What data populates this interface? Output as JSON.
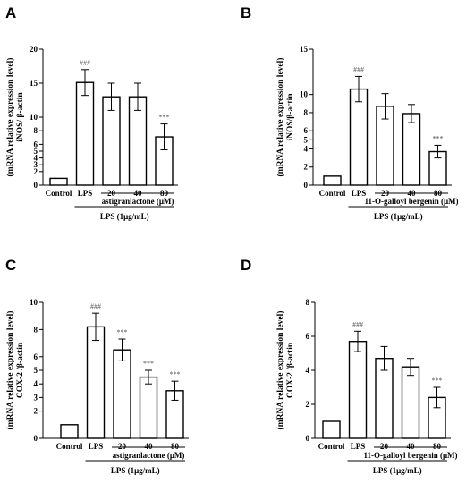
{
  "chart_data": [
    {
      "type": "bar",
      "panel": "A",
      "ylabel": "iNOS/ β-actin",
      "ylabel2": "(mRNA relative expression level)",
      "ylim": [
        0,
        20
      ],
      "y_ticks": [
        0,
        2,
        3,
        4,
        5,
        6,
        8,
        10,
        15,
        20
      ],
      "y_tick_labels": [
        "0",
        "2",
        "3",
        "4",
        "5",
        "6",
        "8",
        "10",
        "15",
        "20"
      ],
      "categories": [
        "Control",
        "LPS",
        "20",
        "40",
        "80"
      ],
      "values": [
        1.0,
        15.1,
        13.0,
        13.0,
        7.1
      ],
      "errors": [
        0,
        1.9,
        2.0,
        2.0,
        1.9
      ],
      "significance": [
        "",
        "###",
        "",
        "",
        "***"
      ],
      "treatment_label": "astigranlactone (μM)",
      "lps_label": "LPS (1μg/mL)"
    },
    {
      "type": "bar",
      "panel": "B",
      "ylabel": "iNOS/β-actin",
      "ylabel2": "(mRNA relative expression level)",
      "ylim": [
        0,
        15
      ],
      "y_ticks": [
        0,
        2,
        4,
        5,
        6,
        8,
        10,
        15
      ],
      "y_tick_labels": [
        "0",
        "2",
        "4",
        "5",
        "6",
        "8",
        "10",
        "15"
      ],
      "categories": [
        "Control",
        "LPS",
        "20",
        "40",
        "80"
      ],
      "values": [
        1.0,
        10.6,
        8.7,
        7.9,
        3.7
      ],
      "errors": [
        0,
        1.4,
        1.4,
        1.0,
        0.7
      ],
      "significance": [
        "",
        "###",
        "",
        "",
        "***"
      ],
      "treatment_label": "11-O-galloyl bergenin (μM)",
      "lps_label": "LPS (1μg/mL)"
    },
    {
      "type": "bar",
      "panel": "C",
      "ylabel": "COX-2 /β-actin",
      "ylabel2": "(mRNA relative expression level)",
      "ylim": [
        0,
        10
      ],
      "y_ticks": [
        0,
        2,
        3,
        4,
        5,
        6,
        8,
        10
      ],
      "y_tick_labels": [
        "0",
        "2",
        "3",
        "4",
        "5",
        "6",
        "8",
        "10"
      ],
      "categories": [
        "Control",
        "LPS",
        "20",
        "40",
        "80"
      ],
      "values": [
        1.0,
        8.2,
        6.5,
        4.5,
        3.5
      ],
      "errors": [
        0,
        1.0,
        0.8,
        0.5,
        0.7
      ],
      "significance": [
        "",
        "###",
        "***",
        "***",
        "***"
      ],
      "treatment_label": "astigranlactone (μM)",
      "lps_label": "LPS (1μg/mL)"
    },
    {
      "type": "bar",
      "panel": "D",
      "ylabel": "COX-2 /β-actin",
      "ylabel2": "(mRNA relative expression level)",
      "ylim": [
        0,
        8
      ],
      "y_ticks": [
        0,
        2,
        4,
        6,
        8
      ],
      "y_tick_labels": [
        "0",
        "2",
        "4",
        "6",
        "8"
      ],
      "categories": [
        "Control",
        "LPS",
        "20",
        "40",
        "80"
      ],
      "values": [
        1.0,
        5.7,
        4.7,
        4.2,
        2.4
      ],
      "errors": [
        0,
        0.6,
        0.7,
        0.5,
        0.6
      ],
      "significance": [
        "",
        "###",
        "",
        "",
        "***"
      ],
      "treatment_label": "11-O-galloyl bergenin (μM)",
      "lps_label": "LPS (1μg/mL)"
    }
  ]
}
